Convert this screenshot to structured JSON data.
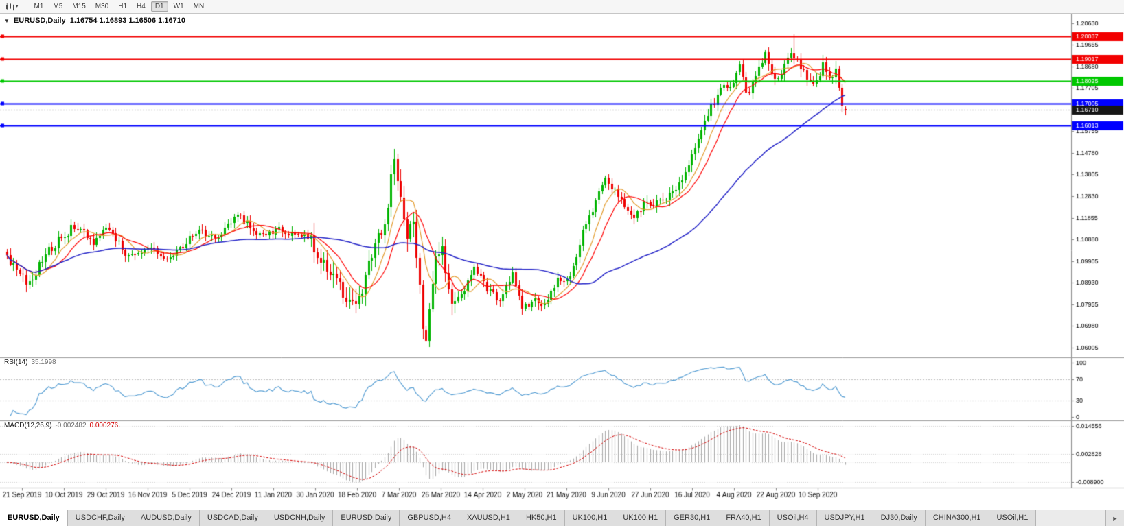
{
  "toolbar": {
    "chart_icon": "candlestick-chart",
    "dropdown_icon": "▾",
    "timeframes": [
      {
        "label": "M1",
        "active": false
      },
      {
        "label": "M5",
        "active": false
      },
      {
        "label": "M15",
        "active": false
      },
      {
        "label": "M30",
        "active": false
      },
      {
        "label": "H1",
        "active": false
      },
      {
        "label": "H4",
        "active": false
      },
      {
        "label": "D1",
        "active": true
      },
      {
        "label": "W1",
        "active": false
      },
      {
        "label": "MN",
        "active": false
      }
    ]
  },
  "chart": {
    "title_symbol": "EURUSD,Daily",
    "title_ohlc": "1.16754 1.16893 1.16506 1.16710",
    "open": "1.16754",
    "high": "1.16893",
    "low": "1.16506",
    "close": "1.16710",
    "collapse_icon": "▼",
    "price_axis_labels": [
      "1.20630",
      "1.19655",
      "1.18680",
      "1.17705",
      "1.16730",
      "1.15755",
      "1.14780",
      "1.13805",
      "1.12830",
      "1.11855",
      "1.10880",
      "1.09905",
      "1.08930",
      "1.07955",
      "1.06980",
      "1.06005"
    ],
    "hlines": [
      {
        "value": 1.20037,
        "label": "1.20037",
        "color": "#f20000",
        "width": 2
      },
      {
        "value": 1.19017,
        "label": "1.19017",
        "color": "#f20000",
        "width": 2
      },
      {
        "value": 1.18025,
        "label": "1.18025",
        "color": "#00c800",
        "width": 2
      },
      {
        "value": 1.17005,
        "label": "1.17005",
        "color": "#0000ff",
        "width": 2
      },
      {
        "value": 1.16013,
        "label": "1.16013",
        "color": "#0000ff",
        "width": 2
      }
    ],
    "current_price": {
      "value": 1.1671,
      "label": "1.16710",
      "box_color": "#161616",
      "line_color": "#8c8c8c"
    },
    "date_labels": [
      "21 Sep 2019",
      "10 Oct 2019",
      "29 Oct 2019",
      "16 Nov 2019",
      "5 Dec 2019",
      "24 Dec 2019",
      "11 Jan 2020",
      "30 Jan 2020",
      "18 Feb 2020",
      "7 Mar 2020",
      "26 Mar 2020",
      "14 Apr 2020",
      "2 May 2020",
      "21 May 2020",
      "9 Jun 2020",
      "27 Jun 2020",
      "16 Jul 2020",
      "4 Aug 2020",
      "22 Aug 2020",
      "10 Sep 2020"
    ]
  },
  "rsi": {
    "name": "RSI(14)",
    "value_text": "35.1998",
    "period": 14,
    "axis_labels": [
      "100",
      "70",
      "30",
      "0"
    ],
    "axis_values": [
      100,
      70,
      30,
      0
    ],
    "dashed_levels": [
      70,
      30
    ],
    "line_color": "#4f9ad2"
  },
  "macd": {
    "name": "MACD(12,26,9)",
    "main_value_text": "-0.002482",
    "signal_value_text": "0.000276",
    "fast": 12,
    "slow": 26,
    "signal": 9,
    "axis_labels": [
      "0.014556",
      "0.002828",
      "-0.008900"
    ],
    "histogram_color": "#a8a8a8",
    "signal_color": "#d40000"
  },
  "chart_data": {
    "type": "candlestick",
    "symbol": "EURUSD",
    "timeframe": "Daily",
    "n_candles": 263,
    "seed": 987123,
    "price_range": {
      "top": 1.2105,
      "bottom": 1.056
    },
    "price_path": [
      [
        0,
        1.1015
      ],
      [
        3,
        1.094
      ],
      [
        7,
        1.0893
      ],
      [
        13,
        1.104
      ],
      [
        21,
        1.1148
      ],
      [
        27,
        1.108
      ],
      [
        31,
        1.1152
      ],
      [
        38,
        1.1008
      ],
      [
        45,
        1.1062
      ],
      [
        50,
        1.0988
      ],
      [
        56,
        1.1078
      ],
      [
        60,
        1.1125
      ],
      [
        66,
        1.1082
      ],
      [
        72,
        1.1212
      ],
      [
        78,
        1.1105
      ],
      [
        85,
        1.1135
      ],
      [
        94,
        1.1094
      ],
      [
        101,
        1.0948
      ],
      [
        108,
        1.0786
      ],
      [
        111,
        1.0878
      ],
      [
        114,
        1.1027
      ],
      [
        118,
        1.1138
      ],
      [
        121,
        1.1452
      ],
      [
        123,
        1.1272
      ],
      [
        125,
        1.1108
      ],
      [
        127,
        1.118
      ],
      [
        130,
        1.0692
      ],
      [
        131,
        1.0648
      ],
      [
        134,
        1.1012
      ],
      [
        136,
        1.1032
      ],
      [
        139,
        1.0792
      ],
      [
        143,
        1.0862
      ],
      [
        146,
        1.0958
      ],
      [
        150,
        1.0872
      ],
      [
        154,
        1.0802
      ],
      [
        158,
        1.0948
      ],
      [
        161,
        1.0788
      ],
      [
        165,
        1.0812
      ],
      [
        168,
        1.0796
      ],
      [
        172,
        1.0902
      ],
      [
        175,
        1.0898
      ],
      [
        178,
        1.1012
      ],
      [
        180,
        1.1134
      ],
      [
        184,
        1.1252
      ],
      [
        187,
        1.1372
      ],
      [
        190,
        1.1302
      ],
      [
        193,
        1.1244
      ],
      [
        196,
        1.1182
      ],
      [
        199,
        1.1252
      ],
      [
        201,
        1.1234
      ],
      [
        205,
        1.1268
      ],
      [
        209,
        1.1302
      ],
      [
        213,
        1.1408
      ],
      [
        217,
        1.1588
      ],
      [
        221,
        1.1712
      ],
      [
        224,
        1.1778
      ],
      [
        226,
        1.1762
      ],
      [
        229,
        1.1872
      ],
      [
        231,
        1.1738
      ],
      [
        234,
        1.1812
      ],
      [
        237,
        1.1932
      ],
      [
        240,
        1.1797
      ],
      [
        242,
        1.1834
      ],
      [
        245,
        1.1936
      ],
      [
        246,
        1.1911
      ],
      [
        249,
        1.1842
      ],
      [
        252,
        1.1802
      ],
      [
        253,
        1.1814
      ],
      [
        255,
        1.1866
      ],
      [
        257,
        1.1817
      ],
      [
        259,
        1.1841
      ],
      [
        260,
        1.1772
      ],
      [
        261,
        1.1708
      ],
      [
        262,
        1.1671
      ]
    ],
    "volatility_zones": [
      {
        "from": 0,
        "to": 20,
        "mult": 1.3
      },
      {
        "from": 95,
        "to": 140,
        "mult": 2.1
      },
      {
        "from": 200,
        "to": 244,
        "mult": 1.15
      },
      {
        "from": 245,
        "to": 262,
        "mult": 1.35
      }
    ],
    "key_candles": [
      {
        "i": 121,
        "h": 1.1495
      },
      {
        "i": 131,
        "l": 1.0636
      },
      {
        "i": 246,
        "h": 1.2011
      },
      {
        "i": 262,
        "o": 1.16754,
        "h": 1.16893,
        "l": 1.16506,
        "c": 1.1671
      }
    ],
    "moving_averages": [
      {
        "period": 8,
        "color": "#e39b2d",
        "width": 1.2
      },
      {
        "period": 13,
        "color": "#ff0000",
        "width": 1.2
      },
      {
        "period": 55,
        "color": "#2424c8",
        "width": 1.5
      }
    ],
    "candle_up_color": "#00b400",
    "candle_down_color": "#ee0000"
  },
  "tabs": {
    "items": [
      {
        "label": "EURUSD,Daily",
        "active": true
      },
      {
        "label": "USDCHF,Daily",
        "active": false
      },
      {
        "label": "AUDUSD,Daily",
        "active": false
      },
      {
        "label": "USDCAD,Daily",
        "active": false
      },
      {
        "label": "USDCNH,Daily",
        "active": false
      },
      {
        "label": "EURUSD,Daily",
        "active": false
      },
      {
        "label": "GBPUSD,H4",
        "active": false
      },
      {
        "label": "XAUUSD,H1",
        "active": false
      },
      {
        "label": "HK50,H1",
        "active": false
      },
      {
        "label": "UK100,H1",
        "active": false
      },
      {
        "label": "UK100,H1",
        "active": false
      },
      {
        "label": "GER30,H1",
        "active": false
      },
      {
        "label": "FRA40,H1",
        "active": false
      },
      {
        "label": "USOil,H4",
        "active": false
      },
      {
        "label": "USDJPY,H1",
        "active": false
      },
      {
        "label": "DJ30,Daily",
        "active": false
      },
      {
        "label": "CHINA300,H1",
        "active": false
      },
      {
        "label": "USOil,H1",
        "active": false
      }
    ],
    "scroll_right_icon": "►"
  }
}
